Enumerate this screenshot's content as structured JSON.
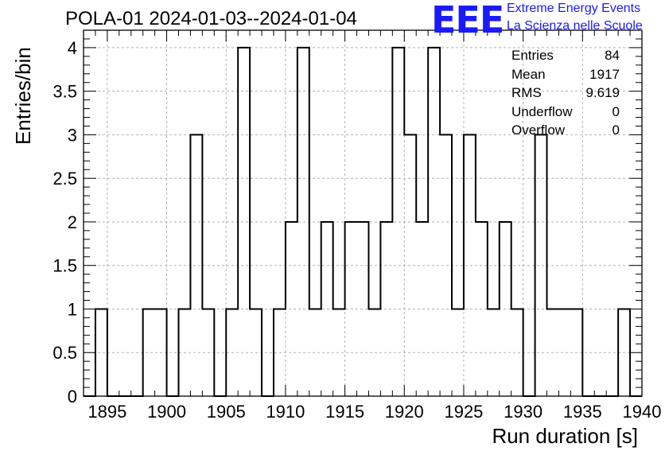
{
  "title": "POLA-01 2024-01-03--2024-01-04",
  "logo": {
    "mark": "EEE",
    "line1": "Extreme Energy Events",
    "line2": "La Scienza nelle Scuole",
    "color": "#1a1aff"
  },
  "stats": [
    {
      "label": "Entries",
      "value": "84"
    },
    {
      "label": "Mean",
      "value": "1917"
    },
    {
      "label": "RMS",
      "value": "9.619"
    },
    {
      "label": "Underflow",
      "value": "0"
    },
    {
      "label": "Overflow",
      "value": "0"
    }
  ],
  "chart_data": {
    "type": "histogram",
    "xlabel": "Run duration [s]",
    "ylabel": "Entries/bin",
    "xlim": [
      1893,
      1940
    ],
    "ylim": [
      0,
      4.2
    ],
    "bin_width": 1,
    "grid": true,
    "x_ticks": [
      1895,
      1900,
      1905,
      1910,
      1915,
      1920,
      1925,
      1930,
      1935,
      1940
    ],
    "y_ticks": [
      0,
      0.5,
      1,
      1.5,
      2,
      2.5,
      3,
      3.5,
      4
    ],
    "y_tick_labels": [
      "0",
      "0.5",
      "1",
      "1.5",
      "2",
      "2.5",
      "3",
      "3.5",
      "4"
    ],
    "bins": [
      {
        "x": 1894.5,
        "count": 1
      },
      {
        "x": 1898.5,
        "count": 1
      },
      {
        "x": 1899.5,
        "count": 1
      },
      {
        "x": 1901.5,
        "count": 1
      },
      {
        "x": 1902.5,
        "count": 3
      },
      {
        "x": 1903.5,
        "count": 1
      },
      {
        "x": 1905.5,
        "count": 1
      },
      {
        "x": 1906.5,
        "count": 4
      },
      {
        "x": 1907.5,
        "count": 1
      },
      {
        "x": 1909.5,
        "count": 1
      },
      {
        "x": 1910.5,
        "count": 2
      },
      {
        "x": 1911.5,
        "count": 4
      },
      {
        "x": 1912.5,
        "count": 1
      },
      {
        "x": 1913.5,
        "count": 2
      },
      {
        "x": 1914.5,
        "count": 1
      },
      {
        "x": 1915.5,
        "count": 2
      },
      {
        "x": 1916.5,
        "count": 2
      },
      {
        "x": 1917.5,
        "count": 1
      },
      {
        "x": 1918.5,
        "count": 2
      },
      {
        "x": 1919.5,
        "count": 4
      },
      {
        "x": 1920.5,
        "count": 3
      },
      {
        "x": 1921.5,
        "count": 2
      },
      {
        "x": 1922.5,
        "count": 4
      },
      {
        "x": 1923.5,
        "count": 3
      },
      {
        "x": 1924.5,
        "count": 1
      },
      {
        "x": 1925.5,
        "count": 3
      },
      {
        "x": 1926.5,
        "count": 2
      },
      {
        "x": 1927.5,
        "count": 1
      },
      {
        "x": 1928.5,
        "count": 2
      },
      {
        "x": 1929.5,
        "count": 1
      },
      {
        "x": 1931.5,
        "count": 3
      },
      {
        "x": 1932.5,
        "count": 1
      },
      {
        "x": 1933.5,
        "count": 1
      },
      {
        "x": 1934.5,
        "count": 1
      },
      {
        "x": 1938.5,
        "count": 1
      }
    ]
  }
}
